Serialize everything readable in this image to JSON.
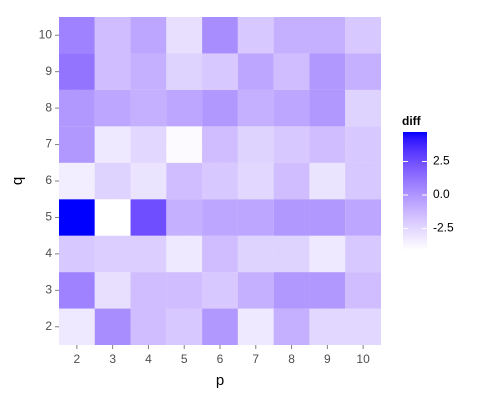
{
  "chart_data": {
    "type": "heatmap",
    "x_label": "p",
    "y_label": "q",
    "legend_title": "diff",
    "x": [
      2,
      3,
      4,
      5,
      6,
      7,
      8,
      9,
      10
    ],
    "y": [
      2,
      3,
      4,
      5,
      6,
      7,
      8,
      9,
      10
    ],
    "z": [
      [
        -3.2,
        0.3,
        -1.5,
        -1.9,
        -0.1,
        -3.2,
        -1.0,
        -2.5,
        -2.5
      ],
      [
        0.7,
        -2.8,
        -1.5,
        -1.5,
        -1.9,
        -1.0,
        -0.1,
        -0.1,
        -1.5
      ],
      [
        -1.9,
        -2.2,
        -2.2,
        -3.2,
        -1.5,
        -2.3,
        -2.3,
        -3.2,
        -1.9
      ],
      [
        4.7,
        -4.1,
        2.5,
        -1.0,
        -0.6,
        -0.6,
        -0.1,
        -0.1,
        -0.6
      ],
      [
        -3.4,
        -2.3,
        -3.0,
        -1.5,
        -1.9,
        -2.5,
        -1.5,
        -3.0,
        -1.9
      ],
      [
        -0.1,
        -3.2,
        -2.5,
        -3.9,
        -1.5,
        -2.3,
        -1.9,
        -1.5,
        -1.9
      ],
      [
        -0.1,
        -0.6,
        -1.0,
        -0.6,
        -0.1,
        -1.0,
        -0.6,
        -0.1,
        -2.3
      ],
      [
        1.2,
        -1.5,
        -1.0,
        -2.3,
        -1.9,
        -0.6,
        -1.5,
        -0.1,
        -1.0
      ],
      [
        0.7,
        -1.5,
        -0.6,
        -2.8,
        0.3,
        -1.9,
        -1.0,
        -1.0,
        -1.9
      ]
    ],
    "xlim": [
      1.5,
      10.5
    ],
    "ylim": [
      1.5,
      10.5
    ],
    "xticks": [
      2,
      3,
      4,
      5,
      6,
      7,
      8,
      9,
      10
    ],
    "yticks": [
      2,
      3,
      4,
      5,
      6,
      7,
      8,
      9,
      10
    ],
    "zlim": [
      -4.1,
      4.7
    ],
    "legend_ticks": [
      2.5,
      {
        "value": 0,
        "label": "0.0"
      },
      -2.5
    ],
    "low_color": "#ffffff",
    "high_color": "#0000ff",
    "grid": true
  }
}
